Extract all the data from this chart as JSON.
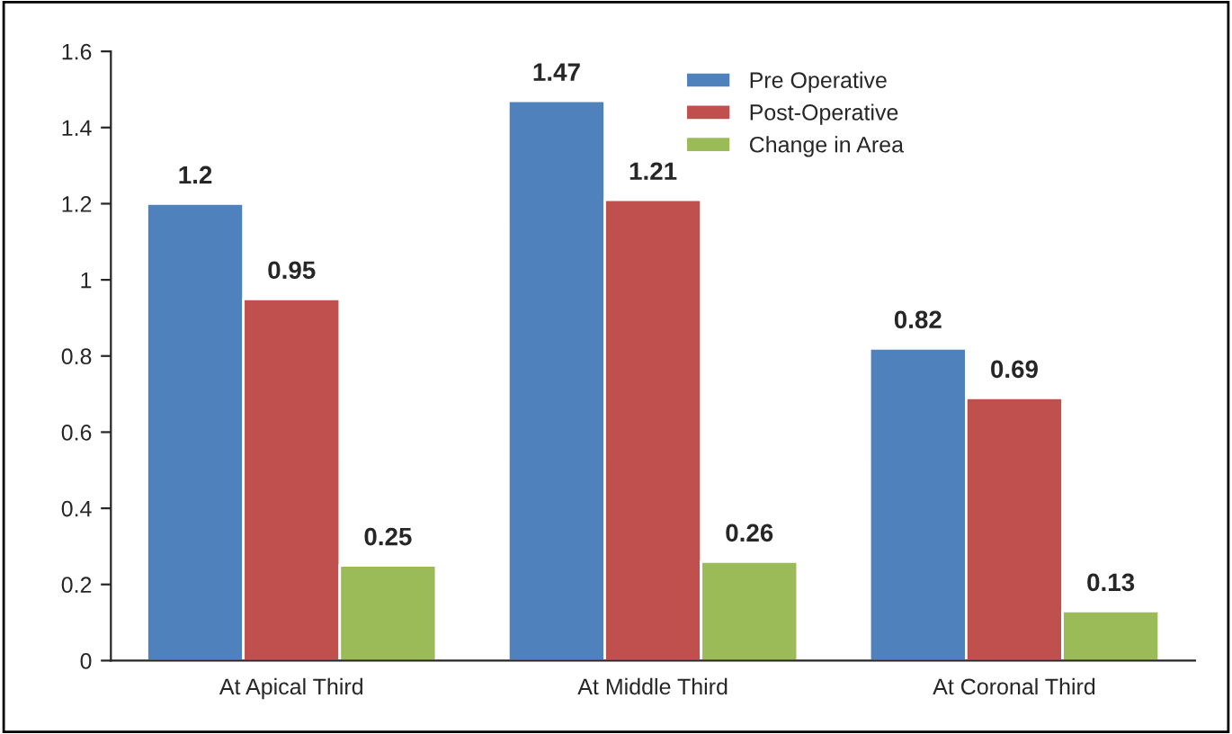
{
  "chart_data": {
    "type": "bar",
    "categories": [
      "At Apical Third",
      "At Middle Third",
      "At Coronal Third"
    ],
    "series": [
      {
        "name": "Pre Operative",
        "color": "#4f81bd",
        "values": [
          1.2,
          1.47,
          0.82
        ]
      },
      {
        "name": "Post-Operative",
        "color": "#c0504d",
        "values": [
          0.95,
          1.21,
          0.69
        ]
      },
      {
        "name": "Change in Area",
        "color": "#9bbb59",
        "values": [
          0.25,
          0.26,
          0.13
        ]
      }
    ],
    "ylim": [
      0,
      1.6
    ],
    "yticks": [
      0,
      0.2,
      0.4,
      0.6,
      0.8,
      1,
      1.2,
      1.4,
      1.6
    ],
    "data_labels": true,
    "legend": "top right",
    "grid": false
  }
}
